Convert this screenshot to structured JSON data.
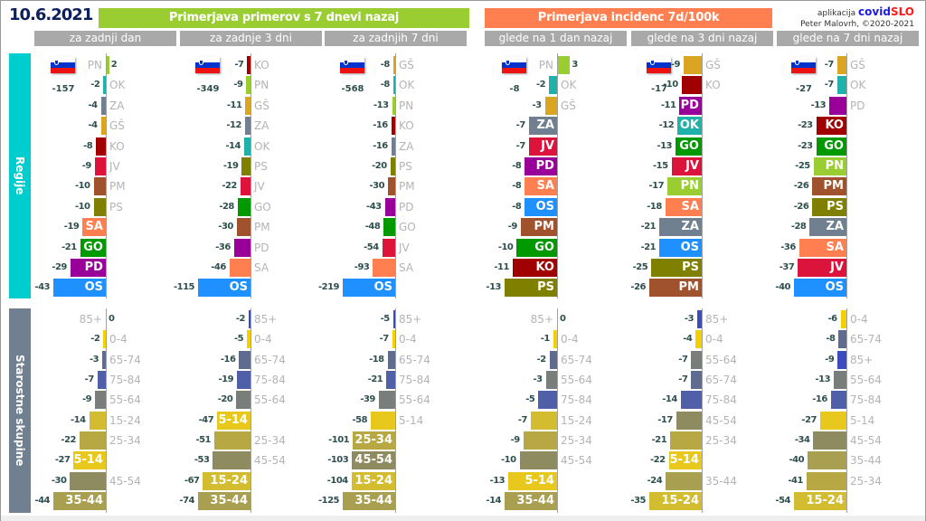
{
  "header": {
    "date": "10.6.2021",
    "title_cases": "Primerjava primerov s 7 dnevi nazaj",
    "title_incidence": "Primerjava incidenc 7d/100k",
    "credit_app": "aplikacija",
    "credit_brand_a": "covid",
    "credit_brand_b": "SLO",
    "credit_author": "Peter Malovrh, ©2020-2021"
  },
  "section_labels": {
    "regions": "Regije",
    "ages": "Starostne skupine"
  },
  "colors": {
    "PN": "#9acd32",
    "OK": "#20b2aa",
    "ZA": "#708090",
    "GŠ": "#daa520",
    "KO": "#a00000",
    "JV": "#dc143c",
    "PM": "#a0522d",
    "PS": "#808000",
    "SA": "#ff7f50",
    "GO": "#009900",
    "PD": "#990099",
    "OS": "#1e90ff",
    "85+": "#3a4cc0",
    "0-4": "#f5d000",
    "65-74": "#5f6b8f",
    "75-84": "#4f5fa8",
    "55-64": "#7a7e7a",
    "15-24": "#d4bc30",
    "25-34": "#b8a844",
    "5-14": "#e8c81c",
    "45-54": "#8f8b60",
    "35-44": "#a8a050"
  },
  "chart_data": {
    "type": "bar",
    "orientation": "horizontal",
    "columns": [
      {
        "group": "cases",
        "subheader": "za zadnji dan",
        "total": -157,
        "regions": [
          {
            "label": "PN",
            "value": 2,
            "in": false
          },
          {
            "label": "OK",
            "value": -2,
            "in": false
          },
          {
            "label": "ZA",
            "value": -4,
            "in": false
          },
          {
            "label": "GŠ",
            "value": -4,
            "in": false
          },
          {
            "label": "KO",
            "value": -8,
            "in": false
          },
          {
            "label": "JV",
            "value": -9,
            "in": false
          },
          {
            "label": "PM",
            "value": -10,
            "in": false
          },
          {
            "label": "PS",
            "value": -10,
            "in": false
          },
          {
            "label": "SA",
            "value": -19,
            "in": true
          },
          {
            "label": "GO",
            "value": -21,
            "in": true
          },
          {
            "label": "PD",
            "value": -29,
            "in": true
          },
          {
            "label": "OS",
            "value": -43,
            "in": true
          }
        ],
        "ages": [
          {
            "label": "85+",
            "value": 0,
            "in": false
          },
          {
            "label": "0-4",
            "value": -2,
            "in": false
          },
          {
            "label": "65-74",
            "value": -3,
            "in": false
          },
          {
            "label": "75-84",
            "value": -7,
            "in": false
          },
          {
            "label": "55-64",
            "value": -9,
            "in": false
          },
          {
            "label": "15-24",
            "value": -14,
            "in": false
          },
          {
            "label": "25-34",
            "value": -22,
            "in": false
          },
          {
            "label": "5-14",
            "value": -27,
            "in": true
          },
          {
            "label": "45-54",
            "value": -30,
            "in": false
          },
          {
            "label": "35-44",
            "value": -44,
            "in": true
          }
        ]
      },
      {
        "group": "cases",
        "subheader": "za zadnje 3 dni",
        "total": -349,
        "regions": [
          {
            "label": "KO",
            "value": -7,
            "in": false
          },
          {
            "label": "PN",
            "value": -9,
            "in": false
          },
          {
            "label": "GŠ",
            "value": -11,
            "in": false
          },
          {
            "label": "ZA",
            "value": -12,
            "in": false
          },
          {
            "label": "OK",
            "value": -14,
            "in": false
          },
          {
            "label": "PS",
            "value": -19,
            "in": false
          },
          {
            "label": "JV",
            "value": -22,
            "in": false
          },
          {
            "label": "GO",
            "value": -28,
            "in": false
          },
          {
            "label": "PM",
            "value": -30,
            "in": false
          },
          {
            "label": "PD",
            "value": -36,
            "in": false
          },
          {
            "label": "SA",
            "value": -46,
            "in": false
          },
          {
            "label": "OS",
            "value": -115,
            "in": true
          }
        ],
        "ages": [
          {
            "label": "85+",
            "value": -2,
            "in": false
          },
          {
            "label": "0-4",
            "value": -5,
            "in": false
          },
          {
            "label": "65-74",
            "value": -16,
            "in": false
          },
          {
            "label": "75-84",
            "value": -19,
            "in": false
          },
          {
            "label": "55-64",
            "value": -20,
            "in": false
          },
          {
            "label": "5-14",
            "value": -47,
            "in": true
          },
          {
            "label": "25-34",
            "value": -51,
            "in": false
          },
          {
            "label": "45-54",
            "value": -53,
            "in": false
          },
          {
            "label": "15-24",
            "value": -67,
            "in": true
          },
          {
            "label": "35-44",
            "value": -74,
            "in": true
          }
        ]
      },
      {
        "group": "cases",
        "subheader": "za zadnjih 7 dni",
        "total": -568,
        "regions": [
          {
            "label": "GŠ",
            "value": -8,
            "in": false
          },
          {
            "label": "OK",
            "value": -8,
            "in": false
          },
          {
            "label": "PN",
            "value": -13,
            "in": false
          },
          {
            "label": "KO",
            "value": -16,
            "in": false
          },
          {
            "label": "ZA",
            "value": -16,
            "in": false
          },
          {
            "label": "PS",
            "value": -20,
            "in": false
          },
          {
            "label": "PM",
            "value": -30,
            "in": false
          },
          {
            "label": "PD",
            "value": -43,
            "in": false
          },
          {
            "label": "GO",
            "value": -48,
            "in": false
          },
          {
            "label": "JV",
            "value": -54,
            "in": false
          },
          {
            "label": "SA",
            "value": -93,
            "in": false
          },
          {
            "label": "OS",
            "value": -219,
            "in": true
          }
        ],
        "ages": [
          {
            "label": "85+",
            "value": -5,
            "in": false
          },
          {
            "label": "0-4",
            "value": -7,
            "in": false
          },
          {
            "label": "65-74",
            "value": -18,
            "in": false
          },
          {
            "label": "75-84",
            "value": -21,
            "in": false
          },
          {
            "label": "55-64",
            "value": -39,
            "in": false
          },
          {
            "label": "5-14",
            "value": -58,
            "in": false
          },
          {
            "label": "25-34",
            "value": -101,
            "in": true
          },
          {
            "label": "45-54",
            "value": -103,
            "in": true
          },
          {
            "label": "15-24",
            "value": -104,
            "in": true
          },
          {
            "label": "35-44",
            "value": -125,
            "in": true
          }
        ]
      },
      {
        "group": "incidence",
        "subheader": "glede na 1 dan nazaj",
        "total": -8,
        "regions": [
          {
            "label": "PN",
            "value": 3,
            "in": false
          },
          {
            "label": "OK",
            "value": -2,
            "in": false
          },
          {
            "label": "GŠ",
            "value": -3,
            "in": false
          },
          {
            "label": "ZA",
            "value": -7,
            "in": true
          },
          {
            "label": "JV",
            "value": -7,
            "in": true
          },
          {
            "label": "PD",
            "value": -8,
            "in": true
          },
          {
            "label": "SA",
            "value": -8,
            "in": true
          },
          {
            "label": "OS",
            "value": -8,
            "in": true
          },
          {
            "label": "PM",
            "value": -9,
            "in": true
          },
          {
            "label": "GO",
            "value": -10,
            "in": true
          },
          {
            "label": "KO",
            "value": -11,
            "in": true
          },
          {
            "label": "PS",
            "value": -13,
            "in": true
          }
        ],
        "ages": [
          {
            "label": "85+",
            "value": 0,
            "in": false
          },
          {
            "label": "0-4",
            "value": -1,
            "in": false
          },
          {
            "label": "65-74",
            "value": -2,
            "in": false
          },
          {
            "label": "55-64",
            "value": -3,
            "in": false
          },
          {
            "label": "75-84",
            "value": -5,
            "in": false
          },
          {
            "label": "15-24",
            "value": -7,
            "in": false
          },
          {
            "label": "25-34",
            "value": -9,
            "in": false
          },
          {
            "label": "45-54",
            "value": -10,
            "in": false
          },
          {
            "label": "5-14",
            "value": -13,
            "in": true
          },
          {
            "label": "35-44",
            "value": -14,
            "in": true
          }
        ]
      },
      {
        "group": "incidence",
        "subheader": "glede na 3 dni nazaj",
        "total": -17,
        "regions": [
          {
            "label": "GŠ",
            "value": -9,
            "in": false
          },
          {
            "label": "KO",
            "value": -10,
            "in": false
          },
          {
            "label": "PD",
            "value": -11,
            "in": true
          },
          {
            "label": "OK",
            "value": -12,
            "in": true
          },
          {
            "label": "GO",
            "value": -13,
            "in": true
          },
          {
            "label": "JV",
            "value": -15,
            "in": true
          },
          {
            "label": "PN",
            "value": -17,
            "in": true
          },
          {
            "label": "SA",
            "value": -18,
            "in": true
          },
          {
            "label": "ZA",
            "value": -21,
            "in": true
          },
          {
            "label": "OS",
            "value": -21,
            "in": true
          },
          {
            "label": "PS",
            "value": -25,
            "in": true
          },
          {
            "label": "PM",
            "value": -26,
            "in": true
          }
        ],
        "ages": [
          {
            "label": "85+",
            "value": -3,
            "in": false
          },
          {
            "label": "0-4",
            "value": -4,
            "in": false
          },
          {
            "label": "55-64",
            "value": -7,
            "in": false
          },
          {
            "label": "65-74",
            "value": -7,
            "in": false
          },
          {
            "label": "75-84",
            "value": -14,
            "in": false
          },
          {
            "label": "45-54",
            "value": -17,
            "in": false
          },
          {
            "label": "25-34",
            "value": -21,
            "in": false
          },
          {
            "label": "5-14",
            "value": -22,
            "in": true
          },
          {
            "label": "35-44",
            "value": -24,
            "in": false
          },
          {
            "label": "15-24",
            "value": -35,
            "in": true
          }
        ]
      },
      {
        "group": "incidence",
        "subheader": "glede na 7 dni nazaj",
        "total": -27,
        "regions": [
          {
            "label": "GŠ",
            "value": -7,
            "in": false
          },
          {
            "label": "OK",
            "value": -7,
            "in": false
          },
          {
            "label": "PD",
            "value": -13,
            "in": false
          },
          {
            "label": "KO",
            "value": -23,
            "in": true
          },
          {
            "label": "GO",
            "value": -23,
            "in": true
          },
          {
            "label": "PN",
            "value": -25,
            "in": true
          },
          {
            "label": "PM",
            "value": -26,
            "in": true
          },
          {
            "label": "PS",
            "value": -26,
            "in": true
          },
          {
            "label": "ZA",
            "value": -28,
            "in": true
          },
          {
            "label": "SA",
            "value": -36,
            "in": true
          },
          {
            "label": "JV",
            "value": -37,
            "in": true
          },
          {
            "label": "OS",
            "value": -40,
            "in": true
          }
        ],
        "ages": [
          {
            "label": "0-4",
            "value": -6,
            "in": false
          },
          {
            "label": "65-74",
            "value": -8,
            "in": false
          },
          {
            "label": "85+",
            "value": -9,
            "in": false
          },
          {
            "label": "55-64",
            "value": -13,
            "in": false
          },
          {
            "label": "75-84",
            "value": -16,
            "in": false
          },
          {
            "label": "5-14",
            "value": -27,
            "in": false
          },
          {
            "label": "45-54",
            "value": -34,
            "in": false
          },
          {
            "label": "35-44",
            "value": -40,
            "in": false
          },
          {
            "label": "25-34",
            "value": -41,
            "in": false
          },
          {
            "label": "15-24",
            "value": -54,
            "in": true
          }
        ]
      }
    ]
  }
}
